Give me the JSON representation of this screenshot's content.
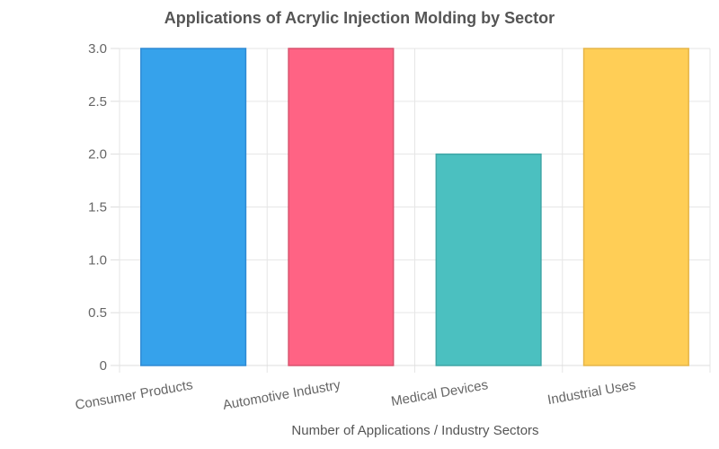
{
  "chart_data": {
    "type": "bar",
    "title": "Applications of Acrylic Injection Molding by Sector",
    "xlabel": "Number of Applications / Industry Sectors",
    "ylabel": "",
    "categories": [
      "Consumer Products",
      "Automotive Industry",
      "Medical Devices",
      "Industrial Uses"
    ],
    "values": [
      3,
      3,
      2,
      3
    ],
    "ylim": [
      0,
      3
    ],
    "yticks": [
      "0",
      "0.5",
      "1.0",
      "1.5",
      "2.0",
      "2.5",
      "3.0"
    ],
    "colors": [
      "#36A2EB",
      "#FF6384",
      "#4BC0C0",
      "#FFCE56"
    ],
    "border_colors": [
      "#2E8AD4",
      "#D9536E",
      "#3FA6A6",
      "#E6B64A"
    ],
    "grid": true,
    "legend": "none"
  }
}
